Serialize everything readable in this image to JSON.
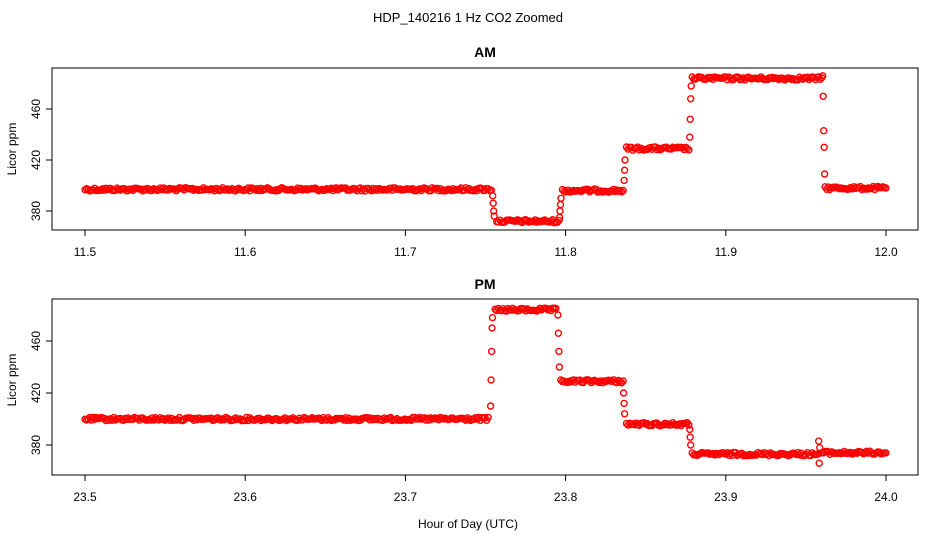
{
  "figure": {
    "title": "HDP_140216  1 Hz CO2 Zoomed",
    "xlabel": "Hour of Day (UTC)",
    "marker_color": "#ff0000"
  },
  "chart_data": [
    {
      "type": "scatter",
      "title": "AM",
      "xlabel": "Hour of Day (UTC)",
      "ylabel": "Licor ppm",
      "xlim": [
        11.5,
        12.0
      ],
      "ylim": [
        352,
        488
      ],
      "xticks": [
        11.5,
        11.6,
        11.7,
        11.8,
        11.9,
        12.0
      ],
      "xtick_labels": [
        "11.5",
        "11.6",
        "11.7",
        "11.8",
        "11.9",
        "12.0"
      ],
      "yticks": [
        380,
        420,
        460
      ],
      "ytick_labels": [
        "380",
        "420",
        "460"
      ],
      "grid": false,
      "legend": "none",
      "series": [
        {
          "color": "#ff0000",
          "segments": [
            {
              "x_start": 11.5,
              "x_end": 11.754,
              "y": 397
            },
            {
              "x_start": 11.757,
              "x_end": 11.796,
              "y": 372
            },
            {
              "x_start": 11.798,
              "x_end": 11.836,
              "y": 396
            },
            {
              "x_start": 11.838,
              "x_end": 11.877,
              "y": 429
            },
            {
              "x_start": 11.879,
              "x_end": 11.96,
              "y": 484
            },
            {
              "x_start": 11.963,
              "x_end": 12.0,
              "y": 398
            }
          ],
          "transitions": [
            {
              "x": 11.7545,
              "y": 392
            },
            {
              "x": 11.7548,
              "y": 386
            },
            {
              "x": 11.7551,
              "y": 380
            },
            {
              "x": 11.7554,
              "y": 376
            },
            {
              "x": 11.7962,
              "y": 375
            },
            {
              "x": 11.7965,
              "y": 380
            },
            {
              "x": 11.7968,
              "y": 385
            },
            {
              "x": 11.7971,
              "y": 390
            },
            {
              "x": 11.8365,
              "y": 404
            },
            {
              "x": 11.8368,
              "y": 412
            },
            {
              "x": 11.8371,
              "y": 420
            },
            {
              "x": 11.8775,
              "y": 438
            },
            {
              "x": 11.8778,
              "y": 452
            },
            {
              "x": 11.8781,
              "y": 468
            },
            {
              "x": 11.8784,
              "y": 478
            },
            {
              "x": 11.9605,
              "y": 486
            },
            {
              "x": 11.9608,
              "y": 470
            },
            {
              "x": 11.9611,
              "y": 443
            },
            {
              "x": 11.9614,
              "y": 430
            },
            {
              "x": 11.9617,
              "y": 409
            },
            {
              "x": 11.962,
              "y": 399
            }
          ]
        }
      ]
    },
    {
      "type": "scatter",
      "title": "PM",
      "xlabel": "Hour of Day (UTC)",
      "ylabel": "Licor ppm",
      "xlim": [
        23.5,
        24.0
      ],
      "ylim": [
        352,
        488
      ],
      "xticks": [
        23.5,
        23.6,
        23.7,
        23.8,
        23.9,
        24.0
      ],
      "xtick_labels": [
        "23.5",
        "23.6",
        "23.7",
        "23.8",
        "23.9",
        "24.0"
      ],
      "yticks": [
        380,
        420,
        460
      ],
      "ytick_labels": [
        "380",
        "420",
        "460"
      ],
      "grid": false,
      "legend": "none",
      "series": [
        {
          "color": "#ff0000",
          "segments": [
            {
              "x_start": 23.5,
              "x_end": 23.752,
              "y": 400
            },
            {
              "x_start": 23.756,
              "x_end": 23.794,
              "y": 484
            },
            {
              "x_start": 23.797,
              "x_end": 23.836,
              "y": 429
            },
            {
              "x_start": 23.838,
              "x_end": 23.877,
              "y": 396
            },
            {
              "x_start": 23.879,
              "x_end": 23.958,
              "y": 373
            },
            {
              "x_start": 23.96,
              "x_end": 24.0,
              "y": 374
            }
          ],
          "transitions": [
            {
              "x": 23.7532,
              "y": 410
            },
            {
              "x": 23.7535,
              "y": 430
            },
            {
              "x": 23.7538,
              "y": 452
            },
            {
              "x": 23.7541,
              "y": 470
            },
            {
              "x": 23.7544,
              "y": 478
            },
            {
              "x": 23.7952,
              "y": 480
            },
            {
              "x": 23.7955,
              "y": 466
            },
            {
              "x": 23.7958,
              "y": 452
            },
            {
              "x": 23.7961,
              "y": 440
            },
            {
              "x": 23.8362,
              "y": 420
            },
            {
              "x": 23.8365,
              "y": 412
            },
            {
              "x": 23.8368,
              "y": 404
            },
            {
              "x": 23.8775,
              "y": 392
            },
            {
              "x": 23.8778,
              "y": 386
            },
            {
              "x": 23.8781,
              "y": 380
            },
            {
              "x": 23.958,
              "y": 383
            },
            {
              "x": 23.9583,
              "y": 366
            },
            {
              "x": 23.9586,
              "y": 378
            }
          ]
        }
      ]
    }
  ]
}
